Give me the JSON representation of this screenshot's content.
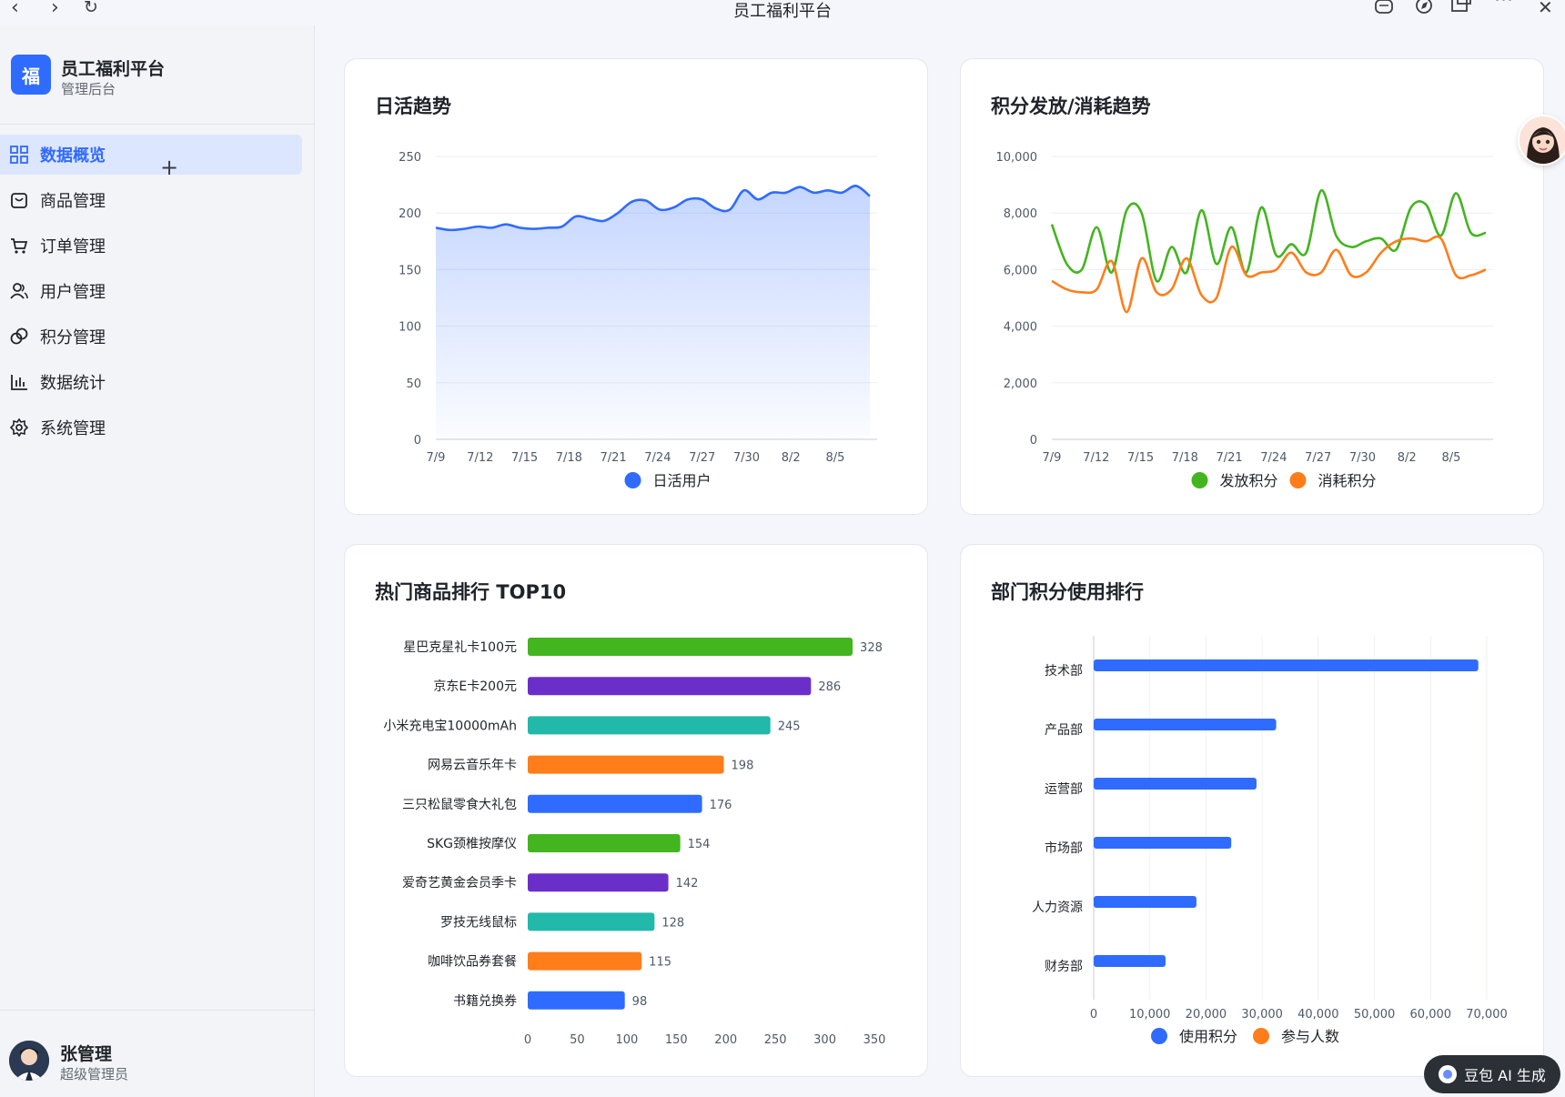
{
  "window": {
    "title": "员工福利平台"
  },
  "brand": {
    "logo": "福",
    "title": "员工福利平台",
    "subtitle": "管理后台"
  },
  "nav": [
    {
      "label": "数据概览",
      "icon": "dashboard-icon",
      "active": true
    },
    {
      "label": "商品管理",
      "icon": "bag-icon",
      "active": false
    },
    {
      "label": "订单管理",
      "icon": "cart-icon",
      "active": false
    },
    {
      "label": "用户管理",
      "icon": "users-icon",
      "active": false
    },
    {
      "label": "积分管理",
      "icon": "coins-icon",
      "active": false
    },
    {
      "label": "数据统计",
      "icon": "bar-chart-icon",
      "active": false
    },
    {
      "label": "系统管理",
      "icon": "gear-icon",
      "active": false
    }
  ],
  "user": {
    "name": "张管理",
    "role": "超级管理员"
  },
  "ai_badge": {
    "label": "豆包 AI 生成"
  },
  "colors": {
    "primary": "#2f6bff",
    "green": "#43b51f",
    "orange": "#ff7d1a",
    "purple": "#6b2fc9",
    "teal": "#22b8aa"
  },
  "chart_data": [
    {
      "id": "dau",
      "type": "area",
      "title": "日活趋势",
      "ylim": [
        0,
        250
      ],
      "yticks": [
        0,
        50,
        100,
        150,
        200,
        250
      ],
      "x_tick_labels": [
        "7/9",
        "7/12",
        "7/15",
        "7/18",
        "7/21",
        "7/24",
        "7/27",
        "7/30",
        "8/2",
        "8/5"
      ],
      "series": [
        {
          "name": "日活用户",
          "color": "#2f6bff",
          "values": [
            187,
            185,
            186,
            188,
            187,
            190,
            187,
            186,
            187,
            188,
            197,
            195,
            193,
            200,
            210,
            211,
            203,
            205,
            212,
            212,
            204,
            203,
            220,
            212,
            218,
            218,
            223,
            218,
            220,
            218,
            224,
            215
          ]
        }
      ]
    },
    {
      "id": "points",
      "type": "line",
      "title": "积分发放/消耗趋势",
      "ylim": [
        0,
        10000
      ],
      "yticks": [
        "0",
        "2,000",
        "4,000",
        "6,000",
        "8,000",
        "10,000"
      ],
      "ytick_values": [
        0,
        2000,
        4000,
        6000,
        8000,
        10000
      ],
      "x_tick_labels": [
        "7/9",
        "7/12",
        "7/15",
        "7/18",
        "7/21",
        "7/24",
        "7/27",
        "7/30",
        "8/2",
        "8/5"
      ],
      "series": [
        {
          "name": "发放积分",
          "color": "#43b51f",
          "values": [
            7600,
            6200,
            6000,
            7500,
            5900,
            8100,
            8000,
            5600,
            6800,
            5900,
            8100,
            6200,
            7500,
            5900,
            8200,
            6500,
            6900,
            6600,
            8800,
            7200,
            6800,
            7000,
            7100,
            6700,
            8200,
            8300,
            7200,
            8700,
            7300,
            7300
          ]
        },
        {
          "name": "消耗积分",
          "color": "#ff7d1a",
          "values": [
            5600,
            5300,
            5200,
            5300,
            6300,
            4500,
            6400,
            5200,
            5300,
            6400,
            5100,
            5000,
            6800,
            5800,
            5900,
            6000,
            6600,
            5900,
            5900,
            6700,
            5800,
            5900,
            6600,
            7000,
            7100,
            7000,
            7100,
            5800,
            5800,
            6000
          ]
        }
      ]
    },
    {
      "id": "top10",
      "type": "bar",
      "orientation": "horizontal",
      "title": "热门商品排行 TOP10",
      "xlim": [
        0,
        350
      ],
      "xticks": [
        0,
        50,
        100,
        150,
        200,
        250,
        300,
        350
      ],
      "categories": [
        "星巴克星礼卡100元",
        "京东E卡200元",
        "小米充电宝10000mAh",
        "网易云音乐年卡",
        "三只松鼠零食大礼包",
        "SKG颈椎按摩仪",
        "爱奇艺黄金会员季卡",
        "罗技无线鼠标",
        "咖啡饮品券套餐",
        "书籍兑换券"
      ],
      "values": [
        328,
        286,
        245,
        198,
        176,
        154,
        142,
        128,
        115,
        98
      ],
      "bar_colors": [
        "#43b51f",
        "#6b2fc9",
        "#22b8aa",
        "#ff7d1a",
        "#2f6bff",
        "#43b51f",
        "#6b2fc9",
        "#22b8aa",
        "#ff7d1a",
        "#2f6bff"
      ]
    },
    {
      "id": "dept",
      "type": "bar",
      "orientation": "horizontal",
      "title": "部门积分使用排行",
      "xlim": [
        0,
        70000
      ],
      "xticks": [
        "0",
        "10,000",
        "20,000",
        "30,000",
        "40,000",
        "50,000",
        "60,000",
        "70,000"
      ],
      "xtick_values": [
        0,
        10000,
        20000,
        30000,
        40000,
        50000,
        60000,
        70000
      ],
      "categories": [
        "技术部",
        "产品部",
        "运营部",
        "市场部",
        "人力资源",
        "财务部"
      ],
      "series": [
        {
          "name": "使用积分",
          "color": "#2f6bff",
          "values": [
            68500,
            32500,
            29000,
            24500,
            18300,
            12800
          ]
        },
        {
          "name": "参与人数",
          "color": "#ff7d1a",
          "values": [
            0,
            0,
            0,
            0,
            0,
            0
          ]
        }
      ]
    }
  ]
}
